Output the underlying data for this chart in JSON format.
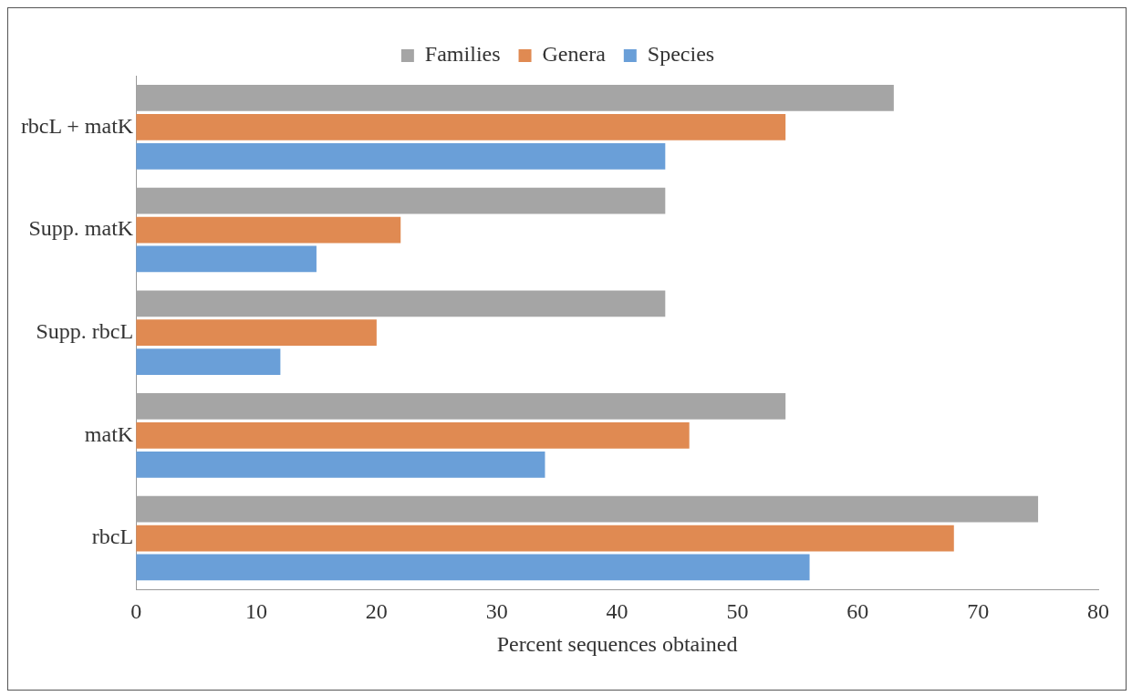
{
  "chart_data": {
    "type": "bar",
    "orientation": "horizontal",
    "xlabel": "Percent sequences obtained",
    "categories": [
      "rbcL + matK",
      "Supp. matK",
      "Supp. rbcL",
      "matK",
      "rbcL"
    ],
    "series": [
      {
        "name": "Families",
        "color": "#a5a5a5",
        "values": [
          63,
          44,
          44,
          54,
          75
        ]
      },
      {
        "name": "Genera",
        "color": "#e08a52",
        "values": [
          54,
          22,
          20,
          46,
          68
        ]
      },
      {
        "name": "Species",
        "color": "#6a9fd8",
        "values": [
          44,
          15,
          12,
          34,
          56
        ]
      }
    ],
    "xlim": [
      0,
      80
    ],
    "xticks": [
      0,
      10,
      20,
      30,
      40,
      50,
      60,
      70,
      80
    ],
    "grid": false,
    "legend": "top"
  }
}
